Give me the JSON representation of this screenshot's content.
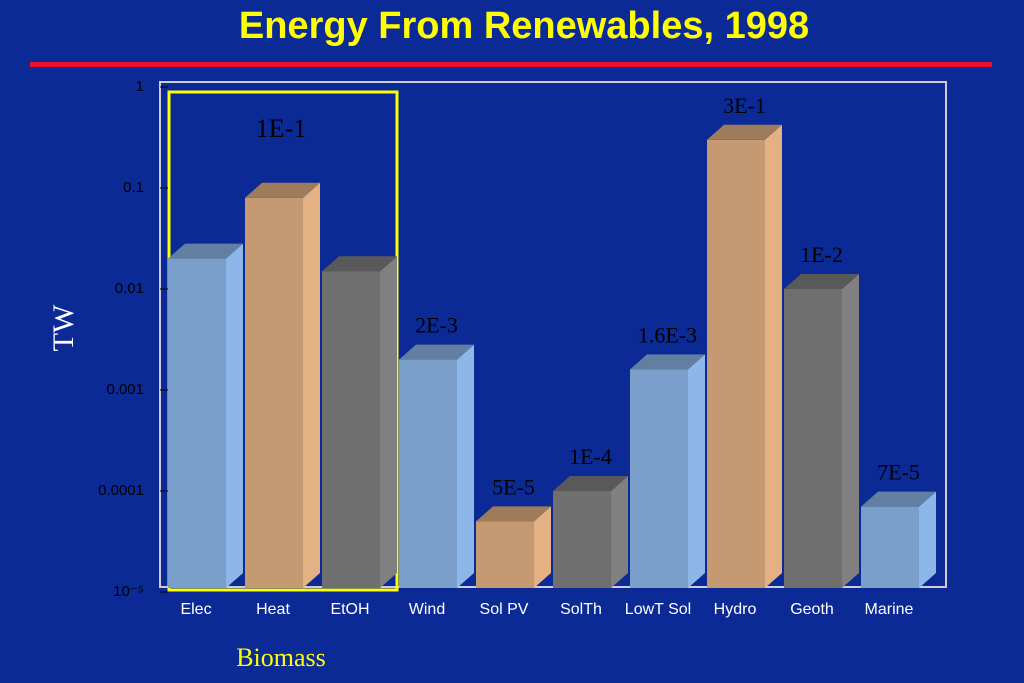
{
  "chart_data": {
    "type": "bar",
    "title": "Energy From Renewables, 1998",
    "y_label": "TW",
    "categories": [
      "Elec",
      "Heat",
      "EtOH",
      "Wind",
      "Sol PV",
      "SolTh",
      "LowT Sol",
      "Hydro",
      "Geoth",
      "Marine"
    ],
    "values": [
      0.02,
      0.08,
      0.015,
      0.002,
      5e-05,
      0.0001,
      0.0016,
      0.3,
      0.01,
      7e-05
    ],
    "value_labels": [
      null,
      null,
      null,
      "2E-3",
      "5E-5",
      "1E-4",
      "1.6E-3",
      "3E-1",
      "1E-2",
      "7E-5"
    ],
    "colors": [
      "#7b9fcb",
      "#c59a72",
      "#6f6f6f",
      "#7b9fcb",
      "#c59a72",
      "#6f6f6f",
      "#7b9fcb",
      "#c59a72",
      "#6f6f6f",
      "#7b9fcb"
    ],
    "log_scale": true,
    "ylim": [
      1e-05,
      1
    ],
    "yticks": [
      {
        "value": 1e-05,
        "label": "10⁻⁵"
      },
      0.0001,
      0.001,
      0.01,
      0.1,
      1
    ],
    "annotations": [
      "1E-1",
      "Biomass"
    ]
  }
}
